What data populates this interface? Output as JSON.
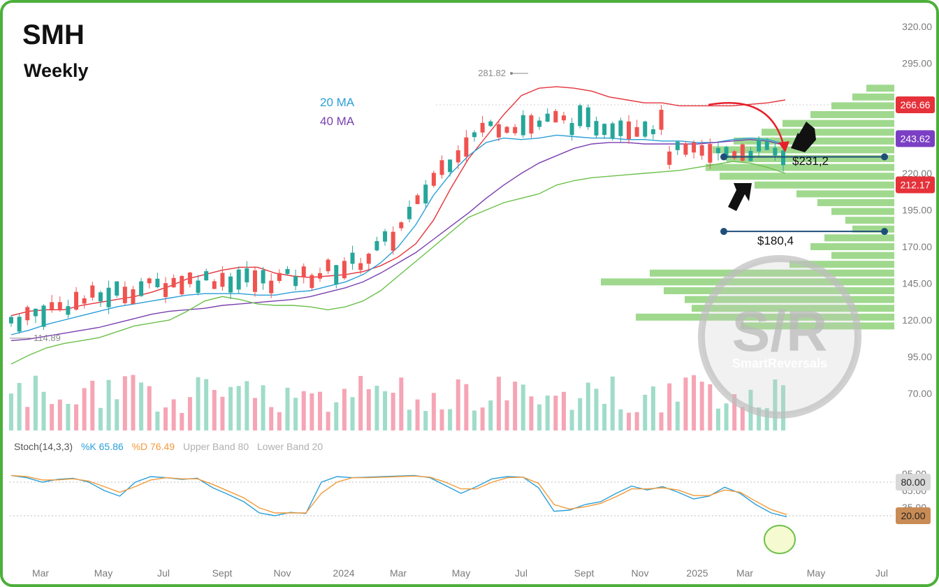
{
  "header": {
    "ticker": "SMH",
    "timeframe": "Weekly"
  },
  "legend": {
    "ma20": "20 MA",
    "ma40": "40 MA"
  },
  "annotations": {
    "high_label": "281.82",
    "low_label": "114.89",
    "support_upper": "$231,2",
    "support_lower": "$180,4",
    "watermark": "S/R",
    "watermark_brand": "SmartReversals"
  },
  "price_badges": [
    {
      "value": "266.66",
      "color": "#e5323a"
    },
    {
      "value": "243.62",
      "color": "#7b3fc4"
    },
    {
      "value": "212.17",
      "color": "#e5323a"
    }
  ],
  "stoch": {
    "title": "Stoch(14,3,3)",
    "k_label": "%K 65.86",
    "d_label": "%D 76.49",
    "upper_band": "Upper Band 80",
    "lower_band": "Lower Band 20",
    "badge_80": "80.00",
    "badge_20": "20.00"
  },
  "colors": {
    "up": "#26a69a",
    "down": "#ef5350",
    "upper_band": "#e5323a",
    "lower_band": "#6cc04a",
    "ma20": "#2a9fd8",
    "ma40": "#7a3fb0",
    "volume_profile": "#8fd27a",
    "stoch_k": "#2a9fd8",
    "stoch_d": "#f29a3a"
  },
  "chart_data": {
    "type": "line",
    "price_axis_ticks": [
      "320.00",
      "295.00",
      "270.00",
      "245.00",
      "220.00",
      "195.00",
      "170.00",
      "145.00",
      "120.00",
      "95.00",
      "70.00"
    ],
    "stoch_axis_ticks": [
      "95.00",
      "80.00",
      "65.00",
      "35.00",
      "20.00"
    ],
    "time_axis_labels": [
      "Mar",
      "May",
      "Jul",
      "Sept",
      "Nov",
      "2024",
      "Mar",
      "May",
      "Jul",
      "Sept",
      "Nov",
      "2025",
      "Mar",
      "May",
      "Jul"
    ],
    "price_series": [
      {
        "name": "Bollinger Upper",
        "values": [
          123,
          126,
          127,
          127,
          130,
          132,
          134,
          136,
          139,
          143,
          148,
          151,
          154,
          156,
          156,
          152,
          150,
          149,
          150,
          151,
          153,
          157,
          163,
          172,
          188,
          210,
          230,
          245,
          260,
          273,
          278,
          279,
          278,
          276,
          272,
          270,
          268,
          268,
          266,
          266,
          266,
          266,
          267,
          268,
          270
        ]
      },
      {
        "name": "20 MA",
        "values": [
          110,
          113,
          117,
          120,
          123,
          126,
          129,
          131,
          133,
          135,
          137,
          138,
          138,
          138,
          137,
          137,
          139,
          140,
          143,
          146,
          151,
          159,
          170,
          185,
          205,
          220,
          232,
          241,
          244,
          243,
          244,
          246,
          245,
          244,
          244,
          243,
          243,
          242,
          242,
          241,
          241,
          243,
          244,
          243,
          240
        ]
      },
      {
        "name": "40 MA",
        "values": [
          106,
          107,
          109,
          111,
          113,
          115,
          118,
          121,
          124,
          126,
          127,
          128,
          130,
          131,
          132,
          133,
          134,
          136,
          139,
          142,
          146,
          152,
          159,
          166,
          175,
          184,
          193,
          203,
          212,
          220,
          227,
          232,
          237,
          240,
          241,
          241,
          240,
          240,
          240,
          240,
          241,
          242,
          243,
          242,
          239
        ]
      },
      {
        "name": "Bollinger Lower",
        "values": [
          90,
          96,
          101,
          104,
          106,
          108,
          112,
          116,
          118,
          120,
          126,
          133,
          136,
          134,
          131,
          130,
          130,
          129,
          127,
          129,
          133,
          140,
          150,
          160,
          170,
          180,
          190,
          195,
          200,
          203,
          206,
          212,
          215,
          217,
          218,
          219,
          220,
          221,
          222,
          224,
          226,
          228,
          227,
          224,
          220
        ]
      }
    ],
    "stoch_series": [
      {
        "name": "%K",
        "values": [
          92,
          88,
          80,
          85,
          87,
          80,
          65,
          55,
          80,
          90,
          88,
          85,
          87,
          70,
          58,
          45,
          25,
          20,
          26,
          24,
          80,
          90,
          88,
          89,
          90,
          91,
          92,
          88,
          74,
          60,
          72,
          86,
          90,
          89,
          70,
          28,
          30,
          40,
          45,
          60,
          73,
          66,
          72,
          62,
          50,
          55,
          71,
          60,
          40,
          25,
          18
        ]
      },
      {
        "name": "%D",
        "values": [
          92,
          90,
          84,
          84,
          86,
          82,
          72,
          62,
          72,
          84,
          88,
          86,
          86,
          76,
          64,
          52,
          34,
          25,
          25,
          25,
          60,
          80,
          88,
          88,
          89,
          90,
          91,
          89,
          80,
          68,
          68,
          80,
          88,
          89,
          78,
          40,
          32,
          36,
          42,
          54,
          68,
          68,
          70,
          66,
          56,
          56,
          66,
          62,
          46,
          31,
          22
        ]
      }
    ]
  }
}
